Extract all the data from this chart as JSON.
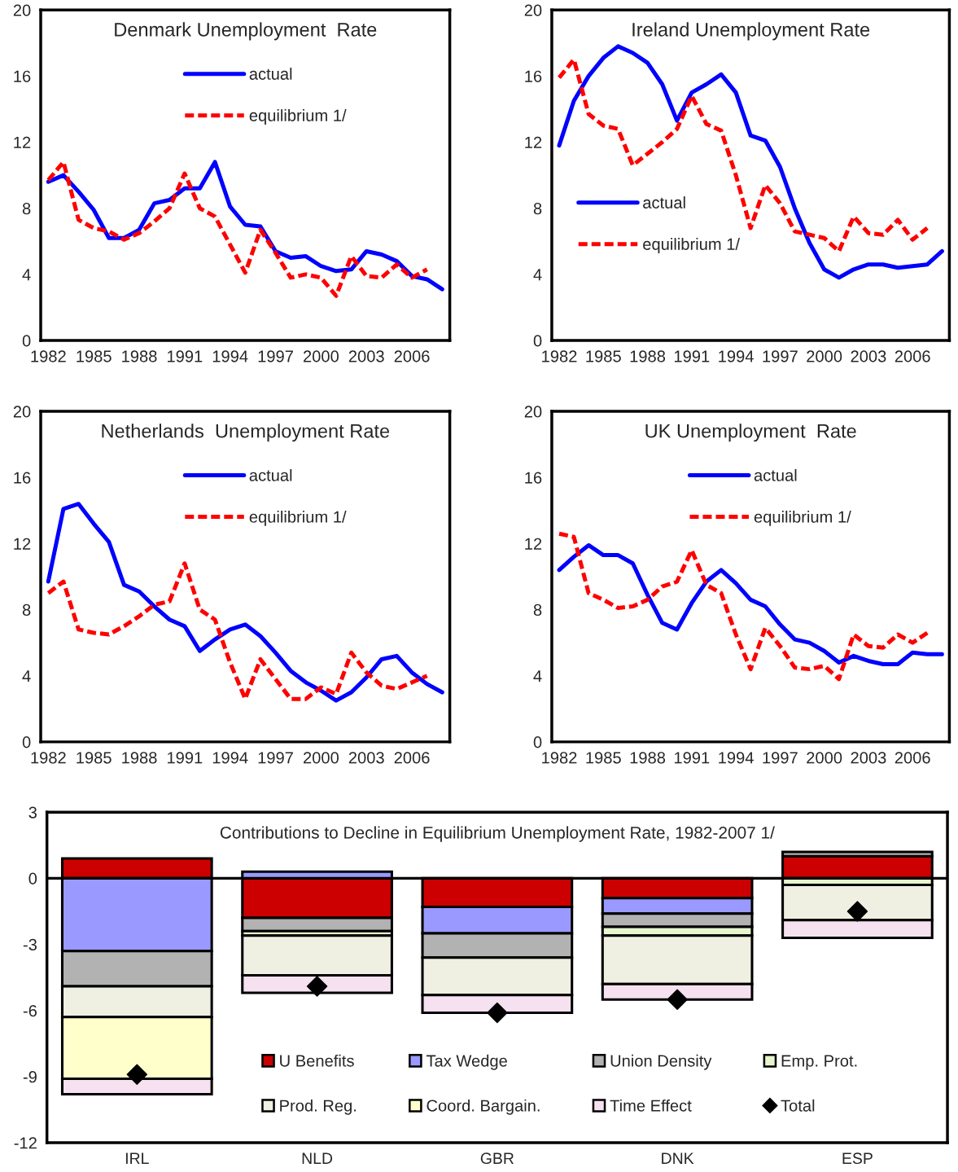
{
  "chart_data": [
    {
      "type": "line",
      "title": "Denmark Unemployment  Rate",
      "xlim": [
        1981.5,
        2008.5
      ],
      "xticks": [
        1982,
        1985,
        1988,
        1991,
        1994,
        1997,
        2000,
        2003,
        2006
      ],
      "ylim": [
        0,
        20
      ],
      "yticks": [
        0,
        4,
        8,
        12,
        16,
        20
      ],
      "legend": "top",
      "grid": false,
      "series": [
        {
          "name": "actual",
          "color": "#0000ff",
          "line_style": "solid",
          "x": [
            1982,
            1983,
            1984,
            1985,
            1986,
            1987,
            1988,
            1989,
            1990,
            1991,
            1992,
            1993,
            1994,
            1995,
            1996,
            1997,
            1998,
            1999,
            2000,
            2001,
            2002,
            2003,
            2004,
            2005,
            2006,
            2007,
            2008
          ],
          "values": [
            9.6,
            10.0,
            9.0,
            7.9,
            6.2,
            6.2,
            6.7,
            8.3,
            8.5,
            9.2,
            9.2,
            10.8,
            8.1,
            7.0,
            6.9,
            5.4,
            5.0,
            5.1,
            4.5,
            4.2,
            4.3,
            5.4,
            5.2,
            4.8,
            3.9,
            3.7,
            3.1
          ]
        },
        {
          "name": "equilibrium 1/",
          "color": "#ff0000",
          "line_style": "dashed",
          "x": [
            1982,
            1983,
            1984,
            1985,
            1986,
            1987,
            1988,
            1989,
            1990,
            1991,
            1992,
            1993,
            1994,
            1995,
            1996,
            1997,
            1998,
            1999,
            2000,
            2001,
            2002,
            2003,
            2004,
            2005,
            2006,
            2007
          ],
          "values": [
            9.7,
            10.8,
            7.3,
            6.8,
            6.6,
            6.1,
            6.5,
            7.2,
            8.0,
            10.1,
            8.0,
            7.5,
            5.8,
            4.1,
            6.7,
            5.3,
            3.8,
            4.0,
            3.8,
            2.7,
            5.1,
            3.9,
            3.8,
            4.6,
            3.8,
            4.3
          ]
        }
      ]
    },
    {
      "type": "line",
      "title": "Ireland Unemployment Rate",
      "xlim": [
        1981.5,
        2008.5
      ],
      "xticks": [
        1982,
        1985,
        1988,
        1991,
        1994,
        1997,
        2000,
        2003,
        2006
      ],
      "ylim": [
        0,
        20
      ],
      "yticks": [
        0,
        4,
        8,
        12,
        16,
        20
      ],
      "legend": "left",
      "grid": false,
      "series": [
        {
          "name": "actual",
          "color": "#0000ff",
          "line_style": "solid",
          "x": [
            1982,
            1983,
            1984,
            1985,
            1986,
            1987,
            1988,
            1989,
            1990,
            1991,
            1992,
            1993,
            1994,
            1995,
            1996,
            1997,
            1998,
            1999,
            2000,
            2001,
            2002,
            2003,
            2004,
            2005,
            2006,
            2007,
            2008
          ],
          "values": [
            11.8,
            14.5,
            16.0,
            17.1,
            17.8,
            17.4,
            16.8,
            15.5,
            13.3,
            15.0,
            15.5,
            16.1,
            15.0,
            12.4,
            12.1,
            10.5,
            8.0,
            5.9,
            4.3,
            3.8,
            4.3,
            4.6,
            4.6,
            4.4,
            4.5,
            4.6,
            5.4
          ]
        },
        {
          "name": "equilibrium 1/",
          "color": "#ff0000",
          "line_style": "dashed",
          "x": [
            1982,
            1983,
            1984,
            1985,
            1986,
            1987,
            1988,
            1989,
            1990,
            1991,
            1992,
            1993,
            1994,
            1995,
            1996,
            1997,
            1998,
            1999,
            2000,
            2001,
            2002,
            2003,
            2004,
            2005,
            2006,
            2007
          ],
          "values": [
            15.9,
            17.0,
            13.7,
            13.0,
            12.8,
            10.6,
            11.3,
            12.0,
            12.8,
            14.8,
            13.1,
            12.7,
            10.0,
            6.8,
            9.4,
            8.3,
            6.6,
            6.4,
            6.2,
            5.4,
            7.5,
            6.5,
            6.4,
            7.3,
            6.1,
            6.8
          ]
        }
      ]
    },
    {
      "type": "line",
      "title": "Netherlands  Unemployment Rate",
      "xlim": [
        1981.5,
        2008.5
      ],
      "xticks": [
        1982,
        1985,
        1988,
        1991,
        1994,
        1997,
        2000,
        2003,
        2006
      ],
      "ylim": [
        0,
        20
      ],
      "yticks": [
        0,
        4,
        8,
        12,
        16,
        20
      ],
      "legend": "top",
      "grid": false,
      "series": [
        {
          "name": "actual",
          "color": "#0000ff",
          "line_style": "solid",
          "x": [
            1982,
            1983,
            1984,
            1985,
            1986,
            1987,
            1988,
            1989,
            1990,
            1991,
            1992,
            1993,
            1994,
            1995,
            1996,
            1997,
            1998,
            1999,
            2000,
            2001,
            2002,
            2003,
            2004,
            2005,
            2006,
            2007,
            2008
          ],
          "values": [
            9.7,
            14.1,
            14.4,
            13.2,
            12.1,
            9.5,
            9.1,
            8.2,
            7.4,
            7.0,
            5.5,
            6.2,
            6.8,
            7.1,
            6.4,
            5.4,
            4.3,
            3.6,
            3.1,
            2.5,
            3.0,
            3.9,
            5.0,
            5.2,
            4.2,
            3.5,
            3.0
          ]
        },
        {
          "name": "equilibrium 1/",
          "color": "#ff0000",
          "line_style": "dashed",
          "x": [
            1982,
            1983,
            1984,
            1985,
            1986,
            1987,
            1988,
            1989,
            1990,
            1991,
            1992,
            1993,
            1994,
            1995,
            1996,
            1997,
            1998,
            1999,
            2000,
            2001,
            2002,
            2003,
            2004,
            2005,
            2006,
            2007
          ],
          "values": [
            9.0,
            9.7,
            6.8,
            6.6,
            6.5,
            7.0,
            7.6,
            8.3,
            8.5,
            10.8,
            8.0,
            7.4,
            4.8,
            2.6,
            5.0,
            3.8,
            2.6,
            2.6,
            3.3,
            2.9,
            5.4,
            4.2,
            3.4,
            3.2,
            3.6,
            4.0
          ]
        }
      ]
    },
    {
      "type": "line",
      "title": "UK Unemployment  Rate",
      "xlim": [
        1981.5,
        2008.5
      ],
      "xticks": [
        1982,
        1985,
        1988,
        1991,
        1994,
        1997,
        2000,
        2003,
        2006
      ],
      "ylim": [
        0,
        20
      ],
      "yticks": [
        0,
        4,
        8,
        12,
        16,
        20
      ],
      "legend": "top",
      "grid": false,
      "series": [
        {
          "name": "actual",
          "color": "#0000ff",
          "line_style": "solid",
          "x": [
            1982,
            1983,
            1984,
            1985,
            1986,
            1987,
            1988,
            1989,
            1990,
            1991,
            1992,
            1993,
            1994,
            1995,
            1996,
            1997,
            1998,
            1999,
            2000,
            2001,
            2002,
            2003,
            2004,
            2005,
            2006,
            2007,
            2008
          ],
          "values": [
            10.4,
            11.2,
            11.9,
            11.3,
            11.3,
            10.8,
            8.9,
            7.2,
            6.8,
            8.4,
            9.7,
            10.4,
            9.6,
            8.6,
            8.2,
            7.1,
            6.2,
            6.0,
            5.5,
            4.8,
            5.2,
            4.9,
            4.7,
            4.7,
            5.4,
            5.3,
            5.3
          ]
        },
        {
          "name": "equilibrium 1/",
          "color": "#ff0000",
          "line_style": "dashed",
          "x": [
            1982,
            1983,
            1984,
            1985,
            1986,
            1987,
            1988,
            1989,
            1990,
            1991,
            1992,
            1993,
            1994,
            1995,
            1996,
            1997,
            1998,
            1999,
            2000,
            2001,
            2002,
            2003,
            2004,
            2005,
            2006,
            2007
          ],
          "values": [
            12.6,
            12.4,
            9.0,
            8.6,
            8.1,
            8.2,
            8.6,
            9.4,
            9.7,
            11.6,
            9.5,
            9.0,
            6.5,
            4.4,
            6.9,
            5.8,
            4.5,
            4.4,
            4.6,
            3.8,
            6.5,
            5.8,
            5.7,
            6.5,
            6.0,
            6.6
          ]
        }
      ]
    },
    {
      "type": "bar",
      "stacked": true,
      "title": "Contributions to Decline in Equilibrium Unemployment Rate, 1982-2007 1/",
      "categories": [
        "IRL",
        "NLD",
        "GBR",
        "DNK",
        "ESP"
      ],
      "ylim": [
        -12,
        3
      ],
      "yticks": [
        3,
        0,
        -3,
        -6,
        -9,
        -12
      ],
      "legend": "bottom",
      "grid": false,
      "ref_lines": [
        {
          "axis": "y",
          "value": 0,
          "color": "#000000"
        }
      ],
      "series": [
        {
          "name": "U Benefits",
          "color": "#cc0000",
          "values": [
            0.9,
            -1.8,
            -1.3,
            -0.9,
            1.0
          ]
        },
        {
          "name": "Tax Wedge",
          "color": "#9999ff",
          "values": [
            -3.3,
            0.3,
            -1.2,
            -0.7,
            null
          ]
        },
        {
          "name": "Union Density",
          "color": "#b2b2b2",
          "values": [
            -1.6,
            -0.6,
            -1.1,
            -0.6,
            0.2
          ]
        },
        {
          "name": "Emp. Prot.",
          "color": "#e6f5cc",
          "values": [
            null,
            -0.2,
            null,
            -0.4,
            -0.3
          ]
        },
        {
          "name": "Prod. Reg.",
          "color": "#efefe2",
          "values": [
            -1.4,
            -1.8,
            -1.7,
            -2.2,
            -1.6
          ]
        },
        {
          "name": "Coord. Bargain.",
          "color": "#ffffcc",
          "values": [
            -2.8,
            null,
            null,
            null,
            null
          ]
        },
        {
          "name": "Time Effect",
          "color": "#f5e1f0",
          "values": [
            -0.7,
            -0.8,
            -0.8,
            -0.7,
            -0.8
          ]
        },
        {
          "name": "Total",
          "type": "scatter",
          "marker": "diamond",
          "color": "#000000",
          "values": [
            -8.9,
            -4.9,
            -6.1,
            -5.5,
            -1.5
          ]
        }
      ]
    }
  ]
}
